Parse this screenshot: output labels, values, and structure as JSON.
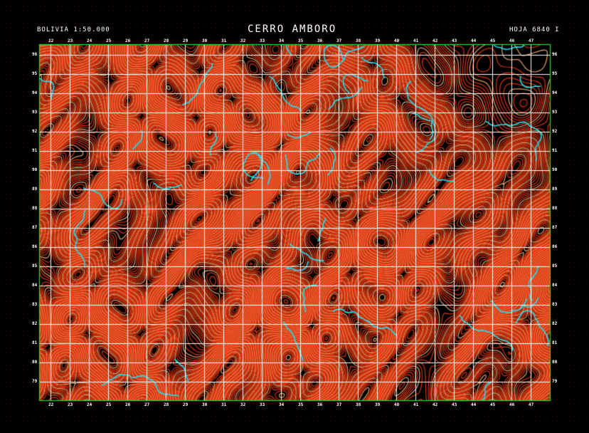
{
  "header": {
    "left_title": "BOLIVIA 1:50.000",
    "title": "CERRO AMBORO",
    "sheet": "HOJA 6840 I"
  },
  "grid": {
    "top_labels": [
      "22",
      "23",
      "24",
      "25",
      "26",
      "27",
      "28",
      "29",
      "30",
      "31",
      "32",
      "33",
      "34",
      "35",
      "36",
      "37",
      "38",
      "39",
      "40",
      "41",
      "42",
      "43",
      "44",
      "45",
      "46",
      "47"
    ],
    "bottom_labels": [
      "22",
      "23",
      "24",
      "25",
      "26",
      "27",
      "28",
      "29",
      "30",
      "31",
      "32",
      "33",
      "34",
      "35",
      "36",
      "37",
      "38",
      "39",
      "40",
      "41",
      "42",
      "43",
      "44",
      "45",
      "46",
      "47"
    ],
    "left_labels": [
      "96",
      "95",
      "94",
      "93",
      "92",
      "91",
      "90",
      "89",
      "88",
      "87",
      "86",
      "85",
      "84",
      "83",
      "82",
      "81",
      "80",
      "79"
    ],
    "right_labels": [
      "96",
      "95",
      "94",
      "93",
      "92",
      "91",
      "90",
      "89",
      "88",
      "87",
      "86",
      "85",
      "84",
      "83",
      "82",
      "81",
      "80",
      "79"
    ]
  },
  "colors": {
    "contour_primary": "#e8380f",
    "contour_secondary": "#d8986a",
    "river": "#1ee0f0",
    "grid": "#ffffff",
    "border": "#22dd22"
  }
}
